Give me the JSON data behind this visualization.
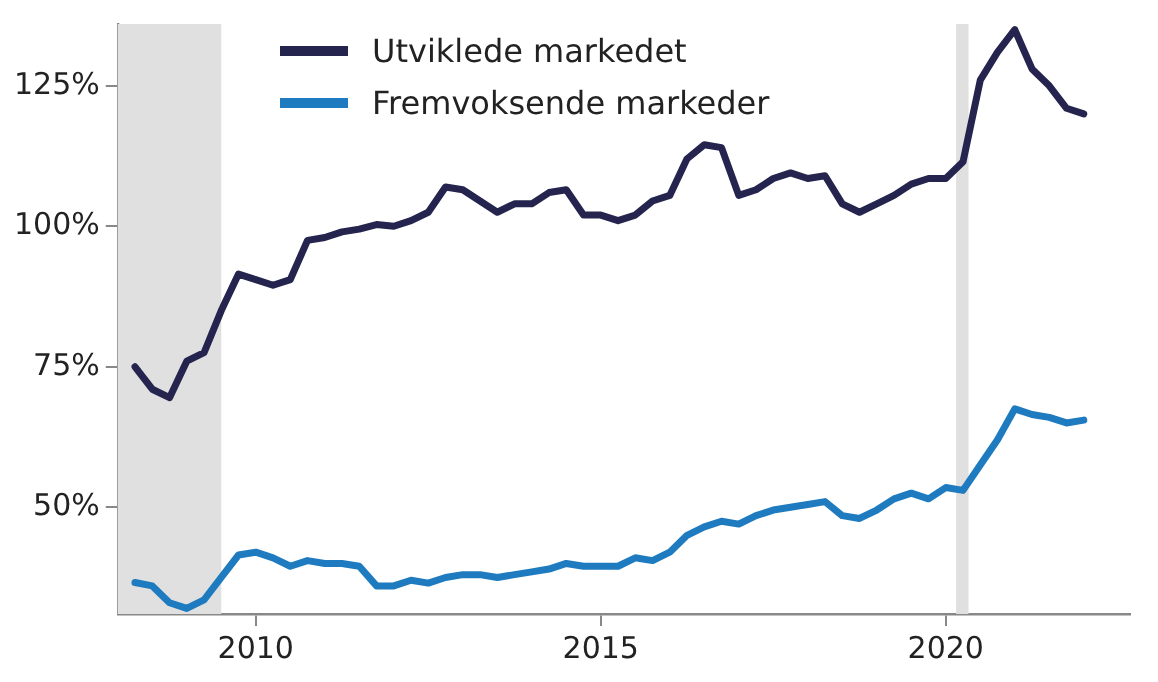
{
  "chart_data": {
    "type": "line",
    "x": [
      2008.25,
      2008.5,
      2008.75,
      2009.0,
      2009.25,
      2009.5,
      2009.75,
      2010.0,
      2010.25,
      2010.5,
      2010.75,
      2011.0,
      2011.25,
      2011.5,
      2011.75,
      2012.0,
      2012.25,
      2012.5,
      2012.75,
      2013.0,
      2013.25,
      2013.5,
      2013.75,
      2014.0,
      2014.25,
      2014.5,
      2014.75,
      2015.0,
      2015.25,
      2015.5,
      2015.75,
      2016.0,
      2016.25,
      2016.5,
      2016.75,
      2017.0,
      2017.25,
      2017.5,
      2017.75,
      2018.0,
      2018.25,
      2018.5,
      2018.75,
      2019.0,
      2019.25,
      2019.5,
      2019.75,
      2020.0,
      2020.25,
      2020.5,
      2020.75,
      2021.0,
      2021.25,
      2021.5,
      2021.75,
      2022.0
    ],
    "series": [
      {
        "name": "Utviklede markedet",
        "color": "#24244f",
        "values": [
          75,
          71,
          69.5,
          76,
          77.5,
          85,
          91.5,
          90.5,
          89.5,
          90.5,
          97.5,
          98,
          99,
          99.5,
          100.3,
          100,
          101,
          102.5,
          107,
          106.5,
          104.5,
          102.5,
          104,
          104,
          106,
          106.5,
          102,
          102,
          101,
          102,
          104.5,
          105.5,
          112,
          114.5,
          114,
          105.5,
          106.5,
          108.5,
          109.5,
          108.5,
          109,
          104,
          102.5,
          104,
          105.5,
          107.5,
          108.5,
          108.5,
          111.5,
          126,
          131,
          135,
          128,
          125,
          121,
          120
        ]
      },
      {
        "name": "Fremvoksende markeder",
        "color": "#1f7bbf",
        "values": [
          36.6,
          36,
          33,
          32,
          33.5,
          37.5,
          41.5,
          42,
          41,
          39.5,
          40.5,
          40,
          40,
          39.5,
          36,
          36,
          37,
          36.5,
          37.5,
          38,
          38,
          37.5,
          38,
          38.5,
          39,
          40,
          39.5,
          39.5,
          39.5,
          41,
          40.5,
          42,
          45,
          46.5,
          47.5,
          47,
          48.5,
          49.5,
          50,
          50.5,
          51,
          48.5,
          48,
          49.5,
          51.5,
          52.5,
          51.5,
          53.5,
          53,
          57.5,
          62,
          67.5,
          66.5,
          66,
          65,
          65.5
        ]
      }
    ],
    "xlim": [
      2008,
      2022.67
    ],
    "xticks": [
      2010,
      2015,
      2020
    ],
    "ylim": [
      31,
      136
    ],
    "yticks": [
      {
        "value": 50,
        "label": "50%"
      },
      {
        "value": 75,
        "label": "75%"
      },
      {
        "value": 100,
        "label": "100%"
      },
      {
        "value": 125,
        "label": "125%"
      }
    ],
    "bands": [
      {
        "axis": "x",
        "from": 2008,
        "to": 2009.5,
        "color": "#e0e0e0"
      },
      {
        "axis": "x",
        "from": 2020.15,
        "to": 2020.33,
        "color": "#e0e0e0"
      }
    ],
    "grid": false,
    "legend": "top left",
    "marker": "none",
    "line_style": "solid"
  }
}
